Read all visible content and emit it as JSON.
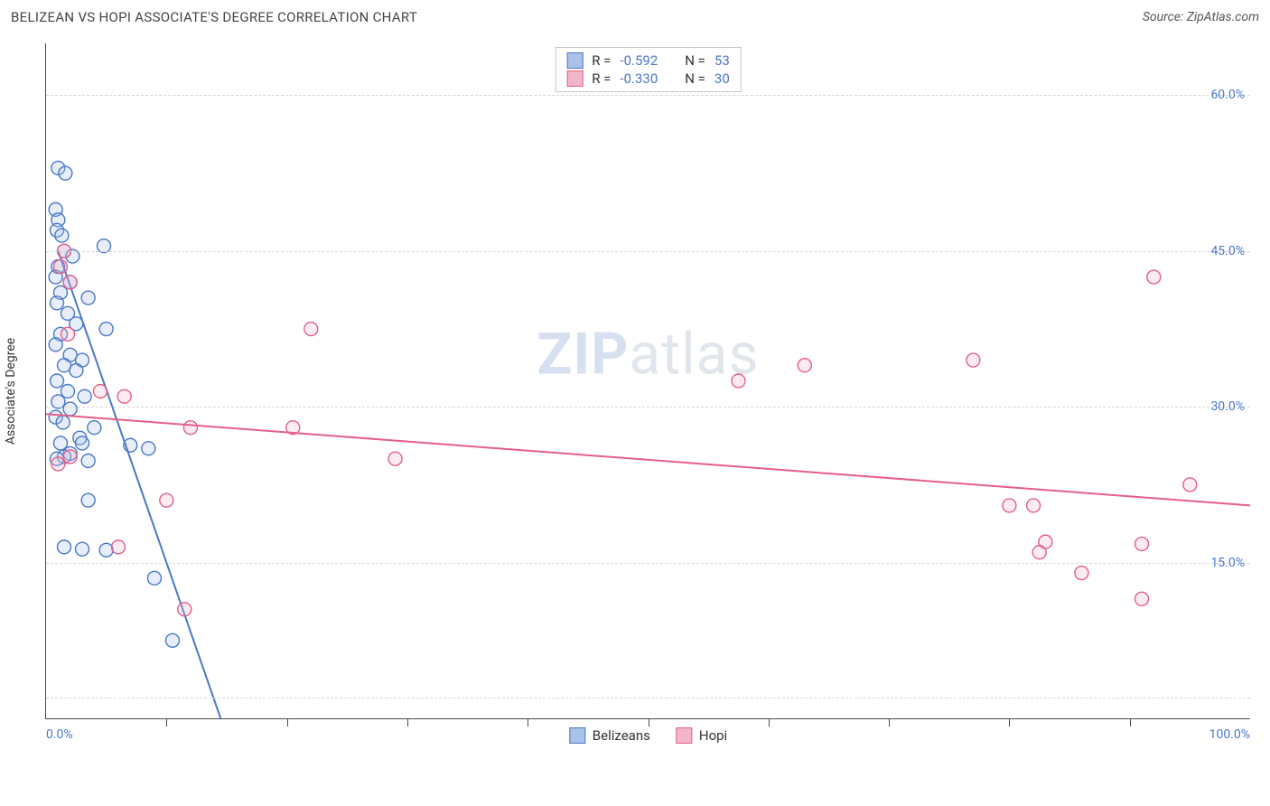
{
  "header": {
    "title": "BELIZEAN VS HOPI ASSOCIATE'S DEGREE CORRELATION CHART",
    "source_prefix": "Source: ",
    "source": "ZipAtlas.com"
  },
  "chart": {
    "type": "scatter",
    "ylabel": "Associate's Degree",
    "xlim": [
      0,
      100
    ],
    "ylim": [
      0,
      65
    ],
    "x_axis_label_left": "0.0%",
    "x_axis_label_right": "100.0%",
    "ytick_labels": [
      "15.0%",
      "30.0%",
      "45.0%",
      "60.0%"
    ],
    "ytick_values": [
      15,
      30,
      45,
      60
    ],
    "grid_y_values": [
      2,
      15,
      30,
      45,
      60
    ],
    "xtick_minor_step": 10,
    "background_color": "#ffffff",
    "grid_color": "#d8d8d8",
    "axis_color": "#4a4a4a",
    "label_color": "#4a78c8",
    "marker_radius": 7.5,
    "marker_stroke_width": 1.4,
    "fill_opacity": 0.28,
    "trend_line_width": 2,
    "watermark": {
      "bold": "ZIP",
      "rest": "atlas"
    },
    "series": [
      {
        "name": "Belizeans",
        "color": "#4a78c8",
        "fill": "#a9c2e8",
        "stats": {
          "R": "-0.592",
          "N": "53"
        },
        "trend": {
          "x1": 1.0,
          "y1": 45,
          "x2": 14.5,
          "y2": 0
        },
        "points": [
          [
            1.0,
            53.0
          ],
          [
            1.6,
            52.5
          ],
          [
            0.8,
            49.0
          ],
          [
            1.0,
            48.0
          ],
          [
            0.9,
            47.0
          ],
          [
            1.3,
            46.5
          ],
          [
            4.8,
            45.5
          ],
          [
            1.5,
            45.0
          ],
          [
            2.2,
            44.5
          ],
          [
            1.0,
            43.5
          ],
          [
            0.8,
            42.5
          ],
          [
            2.0,
            42.0
          ],
          [
            1.2,
            41.0
          ],
          [
            3.5,
            40.5
          ],
          [
            0.9,
            40.0
          ],
          [
            1.8,
            39.0
          ],
          [
            2.5,
            38.0
          ],
          [
            5.0,
            37.5
          ],
          [
            1.2,
            37.0
          ],
          [
            0.8,
            36.0
          ],
          [
            2.0,
            35.0
          ],
          [
            3.0,
            34.5
          ],
          [
            1.5,
            34.0
          ],
          [
            2.5,
            33.5
          ],
          [
            0.9,
            32.5
          ],
          [
            1.8,
            31.5
          ],
          [
            3.2,
            31.0
          ],
          [
            1.0,
            30.5
          ],
          [
            2.0,
            29.8
          ],
          [
            0.8,
            29.0
          ],
          [
            1.4,
            28.5
          ],
          [
            4.0,
            28.0
          ],
          [
            2.8,
            27.0
          ],
          [
            1.2,
            26.5
          ],
          [
            3.0,
            26.5
          ],
          [
            7.0,
            26.3
          ],
          [
            8.5,
            26.0
          ],
          [
            2.0,
            25.5
          ],
          [
            1.5,
            25.2
          ],
          [
            0.9,
            25.0
          ],
          [
            3.5,
            24.8
          ],
          [
            3.5,
            21.0
          ],
          [
            1.5,
            16.5
          ],
          [
            3.0,
            16.3
          ],
          [
            5.0,
            16.2
          ],
          [
            9.0,
            13.5
          ],
          [
            10.5,
            7.5
          ]
        ]
      },
      {
        "name": "Hopi",
        "color": "#e55f8a",
        "fill": "#f3b6c9",
        "stats": {
          "R": "-0.330",
          "N": "30"
        },
        "trend": {
          "x1": 0,
          "y1": 29.3,
          "x2": 100,
          "y2": 20.5
        },
        "points": [
          [
            1.5,
            45.0
          ],
          [
            1.2,
            43.5
          ],
          [
            2.0,
            42.0
          ],
          [
            1.8,
            37.0
          ],
          [
            22.0,
            37.5
          ],
          [
            63.0,
            34.0
          ],
          [
            77.0,
            34.5
          ],
          [
            92.0,
            42.5
          ],
          [
            4.5,
            31.5
          ],
          [
            6.5,
            31.0
          ],
          [
            12.0,
            28.0
          ],
          [
            20.5,
            28.0
          ],
          [
            29.0,
            25.0
          ],
          [
            2.0,
            25.2
          ],
          [
            1.0,
            24.5
          ],
          [
            10.0,
            21.0
          ],
          [
            57.5,
            32.5
          ],
          [
            6.0,
            16.5
          ],
          [
            11.5,
            10.5
          ],
          [
            80.0,
            20.5
          ],
          [
            82.0,
            20.5
          ],
          [
            83.0,
            17.0
          ],
          [
            86.0,
            14.0
          ],
          [
            91.0,
            16.8
          ],
          [
            91.0,
            11.5
          ],
          [
            95.0,
            22.5
          ],
          [
            82.5,
            16.0
          ]
        ]
      }
    ]
  },
  "legend_top": {
    "r_label": "R =",
    "n_label": "N ="
  },
  "bottom_legend": {
    "items": [
      "Belizeans",
      "Hopi"
    ]
  }
}
